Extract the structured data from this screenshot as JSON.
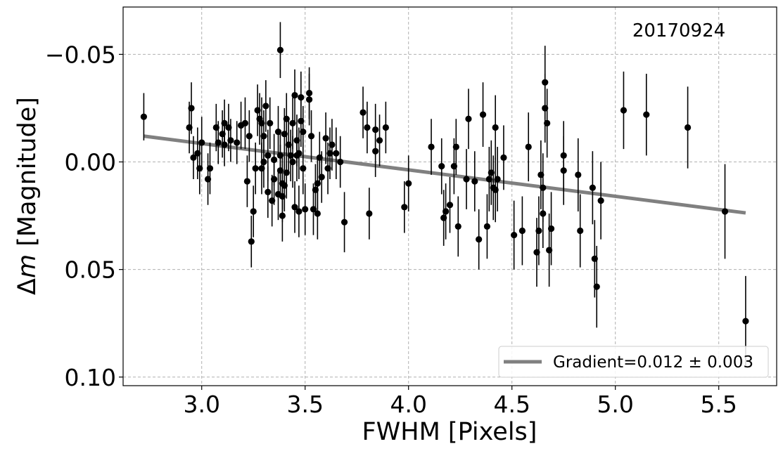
{
  "chart_data": {
    "type": "scatter",
    "title": "",
    "annotation": "20170924",
    "xlabel": "FWHM [Pixels]",
    "ylabel_prefix": "Δ",
    "ylabel_var": "m",
    "ylabel_suffix": " [Magnitude]",
    "xlim": [
      2.62,
      5.78
    ],
    "ylim": [
      -0.072,
      0.104
    ],
    "y_inverted": true,
    "grid": true,
    "xticks": [
      3.0,
      3.5,
      4.0,
      4.5,
      5.0,
      5.5
    ],
    "xtick_labels": [
      "3.0",
      "3.5",
      "4.0",
      "4.5",
      "5.0",
      "5.5"
    ],
    "yticks": [
      -0.05,
      0.0,
      0.05,
      0.1
    ],
    "ytick_labels": [
      "−0.05",
      "0.00",
      "0.05",
      "0.10"
    ],
    "legend": {
      "placement": "lower-right",
      "entries": [
        {
          "label": "Gradient=0.012 ± 0.003",
          "color": "#808080"
        }
      ]
    },
    "fit_line": {
      "x": [
        2.72,
        5.63
      ],
      "y": [
        -0.012,
        0.0237
      ],
      "color": "#808080"
    },
    "series": [
      {
        "color": "#000000",
        "points": [
          [
            2.72,
            -0.021,
            0.011
          ],
          [
            2.94,
            -0.016,
            0.012
          ],
          [
            2.95,
            -0.025,
            0.012
          ],
          [
            2.96,
            -0.002,
            0.01
          ],
          [
            2.98,
            -0.004,
            0.012
          ],
          [
            2.99,
            0.003,
            0.012
          ],
          [
            3.0,
            -0.009,
            0.012
          ],
          [
            3.03,
            0.008,
            0.012
          ],
          [
            3.04,
            0.003,
            0.012
          ],
          [
            3.07,
            -0.016,
            0.011
          ],
          [
            3.08,
            -0.009,
            0.01
          ],
          [
            3.1,
            -0.013,
            0.011
          ],
          [
            3.11,
            -0.018,
            0.011
          ],
          [
            3.11,
            -0.008,
            0.01
          ],
          [
            3.13,
            -0.016,
            0.011
          ],
          [
            3.14,
            -0.01,
            0.01
          ],
          [
            3.17,
            -0.009,
            0.01
          ],
          [
            3.19,
            -0.017,
            0.011
          ],
          [
            3.21,
            -0.018,
            0.012
          ],
          [
            3.22,
            0.009,
            0.012
          ],
          [
            3.23,
            -0.012,
            0.012
          ],
          [
            3.24,
            0.037,
            0.012
          ],
          [
            3.25,
            0.023,
            0.012
          ],
          [
            3.26,
            0.003,
            0.012
          ],
          [
            3.27,
            -0.024,
            0.012
          ],
          [
            3.28,
            -0.02,
            0.012
          ],
          [
            3.29,
            0.003,
            0.012
          ],
          [
            3.29,
            -0.018,
            0.012
          ],
          [
            3.3,
            0.0,
            0.012
          ],
          [
            3.3,
            -0.012,
            0.012
          ],
          [
            3.31,
            -0.026,
            0.012
          ],
          [
            3.32,
            -0.003,
            0.012
          ],
          [
            3.32,
            0.014,
            0.012
          ],
          [
            3.33,
            -0.018,
            0.012
          ],
          [
            3.34,
            0.018,
            0.012
          ],
          [
            3.35,
            -0.001,
            0.012
          ],
          [
            3.35,
            0.008,
            0.012
          ],
          [
            3.37,
            -0.014,
            0.012
          ],
          [
            3.37,
            0.015,
            0.012
          ],
          [
            3.38,
            -0.052,
            0.013
          ],
          [
            3.38,
            0.004,
            0.012
          ],
          [
            3.38,
            -0.003,
            0.012
          ],
          [
            3.39,
            0.01,
            0.012
          ],
          [
            3.39,
            0.025,
            0.012
          ],
          [
            3.39,
            0.016,
            0.012
          ],
          [
            3.4,
            -0.013,
            0.012
          ],
          [
            3.4,
            0.011,
            0.012
          ],
          [
            3.41,
            -0.02,
            0.012
          ],
          [
            3.41,
            0.005,
            0.012
          ],
          [
            3.42,
            -0.008,
            0.012
          ],
          [
            3.43,
            -0.003,
            0.012
          ],
          [
            3.44,
            -0.018,
            0.012
          ],
          [
            3.44,
            0.0,
            0.012
          ],
          [
            3.45,
            -0.031,
            0.012
          ],
          [
            3.45,
            0.021,
            0.012
          ],
          [
            3.46,
            -0.01,
            0.012
          ],
          [
            3.46,
            -0.003,
            0.012
          ],
          [
            3.47,
            -0.004,
            0.012
          ],
          [
            3.47,
            0.023,
            0.012
          ],
          [
            3.48,
            -0.03,
            0.012
          ],
          [
            3.48,
            -0.019,
            0.012
          ],
          [
            3.49,
            -0.014,
            0.012
          ],
          [
            3.49,
            0.003,
            0.012
          ],
          [
            3.5,
            0.022,
            0.012
          ],
          [
            3.52,
            -0.032,
            0.012
          ],
          [
            3.52,
            -0.029,
            0.012
          ],
          [
            3.53,
            -0.012,
            0.012
          ],
          [
            3.54,
            0.022,
            0.012
          ],
          [
            3.55,
            0.013,
            0.012
          ],
          [
            3.56,
            0.024,
            0.012
          ],
          [
            3.56,
            0.01,
            0.012
          ],
          [
            3.57,
            -0.002,
            0.012
          ],
          [
            3.58,
            0.007,
            0.012
          ],
          [
            3.6,
            -0.011,
            0.012
          ],
          [
            3.61,
            0.003,
            0.012
          ],
          [
            3.62,
            -0.004,
            0.012
          ],
          [
            3.63,
            -0.008,
            0.012
          ],
          [
            3.65,
            -0.004,
            0.012
          ],
          [
            3.67,
            0.0,
            0.012
          ],
          [
            3.69,
            0.028,
            0.014
          ],
          [
            3.78,
            -0.023,
            0.012
          ],
          [
            3.8,
            -0.016,
            0.012
          ],
          [
            3.81,
            0.024,
            0.012
          ],
          [
            3.84,
            -0.015,
            0.012
          ],
          [
            3.84,
            -0.005,
            0.012
          ],
          [
            3.86,
            -0.01,
            0.012
          ],
          [
            3.89,
            -0.016,
            0.012
          ],
          [
            3.98,
            0.021,
            0.012
          ],
          [
            4.0,
            0.01,
            0.013
          ],
          [
            4.11,
            -0.007,
            0.013
          ],
          [
            4.16,
            0.002,
            0.013
          ],
          [
            4.17,
            0.026,
            0.013
          ],
          [
            4.18,
            0.023,
            0.013
          ],
          [
            4.2,
            0.02,
            0.013
          ],
          [
            4.22,
            0.002,
            0.013
          ],
          [
            4.23,
            -0.007,
            0.013
          ],
          [
            4.24,
            0.03,
            0.014
          ],
          [
            4.28,
            0.008,
            0.014
          ],
          [
            4.29,
            -0.02,
            0.014
          ],
          [
            4.32,
            0.009,
            0.014
          ],
          [
            4.34,
            0.036,
            0.014
          ],
          [
            4.36,
            -0.022,
            0.015
          ],
          [
            4.38,
            0.03,
            0.015
          ],
          [
            4.39,
            0.008,
            0.015
          ],
          [
            4.4,
            0.005,
            0.015
          ],
          [
            4.41,
            0.012,
            0.015
          ],
          [
            4.42,
            -0.016,
            0.015
          ],
          [
            4.42,
            0.013,
            0.015
          ],
          [
            4.43,
            0.008,
            0.015
          ],
          [
            4.46,
            -0.002,
            0.015
          ],
          [
            4.51,
            0.034,
            0.016
          ],
          [
            4.55,
            0.032,
            0.016
          ],
          [
            4.58,
            -0.007,
            0.016
          ],
          [
            4.62,
            0.042,
            0.016
          ],
          [
            4.63,
            0.032,
            0.016
          ],
          [
            4.64,
            0.006,
            0.016
          ],
          [
            4.65,
            0.012,
            0.016
          ],
          [
            4.65,
            0.024,
            0.016
          ],
          [
            4.66,
            -0.025,
            0.016
          ],
          [
            4.67,
            -0.018,
            0.016
          ],
          [
            4.66,
            -0.037,
            0.017
          ],
          [
            4.68,
            0.041,
            0.017
          ],
          [
            4.69,
            0.031,
            0.017
          ],
          [
            4.75,
            -0.003,
            0.016
          ],
          [
            4.75,
            0.004,
            0.016
          ],
          [
            4.82,
            0.006,
            0.017
          ],
          [
            4.83,
            0.032,
            0.017
          ],
          [
            4.89,
            0.012,
            0.017
          ],
          [
            4.9,
            0.045,
            0.018
          ],
          [
            4.91,
            0.058,
            0.019
          ],
          [
            4.93,
            0.018,
            0.018
          ],
          [
            5.04,
            -0.024,
            0.018
          ],
          [
            5.15,
            -0.022,
            0.019
          ],
          [
            5.35,
            -0.016,
            0.019
          ],
          [
            5.53,
            0.023,
            0.022
          ],
          [
            5.63,
            0.074,
            0.021
          ]
        ]
      }
    ]
  }
}
